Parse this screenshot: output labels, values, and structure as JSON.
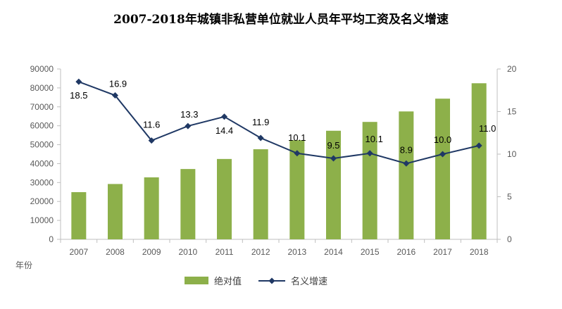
{
  "chart_data": {
    "type": "bar+line",
    "title": "2007-2018年城镇非私营单位就业人员年平均工资及名义增速",
    "xlabel": "年份",
    "categories": [
      "2007",
      "2008",
      "2009",
      "2010",
      "2011",
      "2012",
      "2013",
      "2014",
      "2015",
      "2016",
      "2017",
      "2018"
    ],
    "series": [
      {
        "name": "绝对值",
        "type": "bar",
        "axis": "left",
        "color": "#8DB04A",
        "values": [
          24932,
          29229,
          32736,
          37147,
          42452,
          47593,
          52388,
          57361,
          62029,
          67569,
          74318,
          82461
        ]
      },
      {
        "name": "名义增速",
        "type": "line",
        "axis": "right",
        "color": "#1F3864",
        "values": [
          18.5,
          16.9,
          11.6,
          13.3,
          14.4,
          11.9,
          10.1,
          9.5,
          10.1,
          8.9,
          10.0,
          11.0
        ],
        "labels": [
          "18.5",
          "16.9",
          "11.6",
          "13.3",
          "14.4",
          "11.9",
          "10.1",
          "9.5",
          "10.1",
          "8.9",
          "10.0",
          "11.0"
        ]
      }
    ],
    "y_left": {
      "min": 0,
      "max": 90000,
      "step": 10000,
      "ticks": [
        "0",
        "10000",
        "20000",
        "30000",
        "40000",
        "50000",
        "60000",
        "70000",
        "80000",
        "90000"
      ]
    },
    "y_right": {
      "min": 0,
      "max": 20,
      "step": 5,
      "ticks": [
        "0",
        "5",
        "10",
        "15",
        "20"
      ]
    },
    "grid": false,
    "legend_position": "bottom"
  }
}
